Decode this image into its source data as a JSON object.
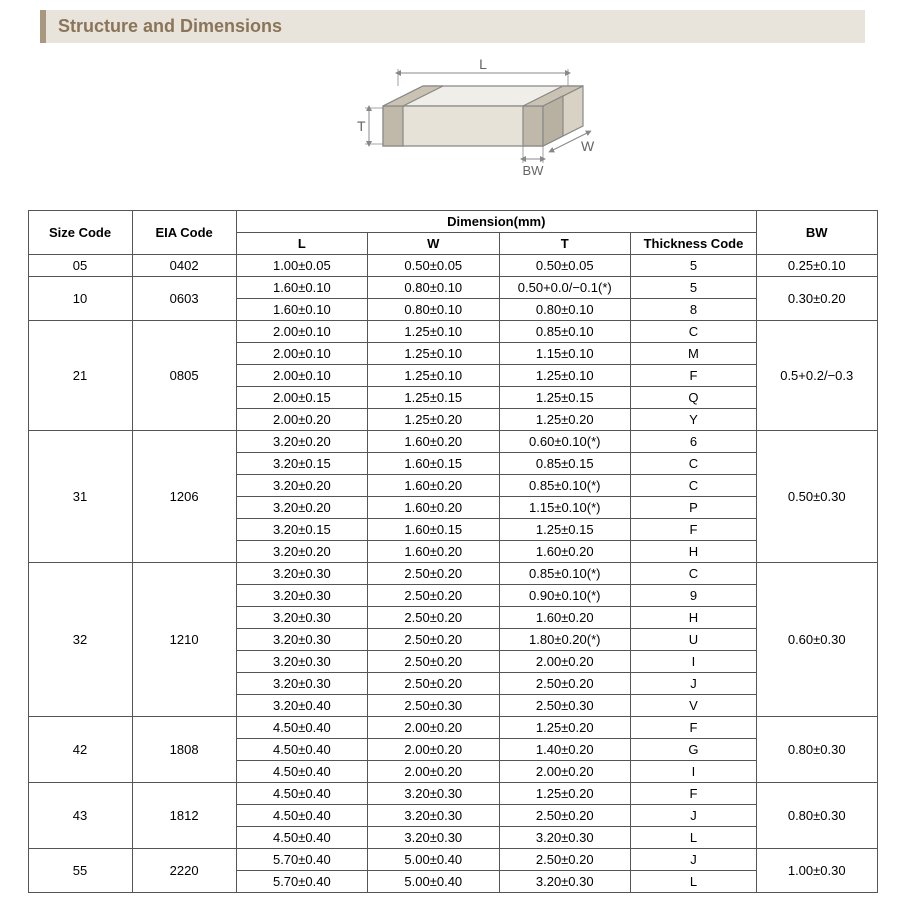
{
  "header": {
    "title": "Structure and Dimensions"
  },
  "diagram": {
    "labels": {
      "L": "L",
      "W": "W",
      "T": "T",
      "BW": "BW"
    },
    "colors": {
      "outline": "#888888",
      "fill_top": "#f0eee8",
      "fill_front": "#e6e2d8",
      "fill_side": "#d8d2c4",
      "bw_fill": "#c0b8a8",
      "arrow": "#888888",
      "text": "#666666"
    },
    "fontsize": 14,
    "stroke_width": 1.2
  },
  "table": {
    "headers": {
      "size": "Size Code",
      "eia": "EIA Code",
      "dim": "Dimension(mm)",
      "L": "L",
      "W": "W",
      "T": "T",
      "thk": "Thickness  Code",
      "BW": "BW"
    },
    "groups": [
      {
        "size": "05",
        "eia": "0402",
        "bw": "0.25±0.10",
        "rows": [
          {
            "L": "1.00±0.05",
            "W": "0.50±0.05",
            "T": "0.50±0.05",
            "thk": "5"
          }
        ]
      },
      {
        "size": "10",
        "eia": "0603",
        "bw": "0.30±0.20",
        "rows": [
          {
            "L": "1.60±0.10",
            "W": "0.80±0.10",
            "T": "0.50+0.0/−0.1(*)",
            "thk": "5"
          },
          {
            "L": "1.60±0.10",
            "W": "0.80±0.10",
            "T": "0.80±0.10",
            "thk": "8"
          }
        ]
      },
      {
        "size": "21",
        "eia": "0805",
        "bw": "0.5+0.2/−0.3",
        "rows": [
          {
            "L": "2.00±0.10",
            "W": "1.25±0.10",
            "T": "0.85±0.10",
            "thk": "C"
          },
          {
            "L": "2.00±0.10",
            "W": "1.25±0.10",
            "T": "1.15±0.10",
            "thk": "M"
          },
          {
            "L": "2.00±0.10",
            "W": "1.25±0.10",
            "T": "1.25±0.10",
            "thk": "F"
          },
          {
            "L": "2.00±0.15",
            "W": "1.25±0.15",
            "T": "1.25±0.15",
            "thk": "Q"
          },
          {
            "L": "2.00±0.20",
            "W": "1.25±0.20",
            "T": "1.25±0.20",
            "thk": "Y"
          }
        ]
      },
      {
        "size": "31",
        "eia": "1206",
        "bw": "0.50±0.30",
        "rows": [
          {
            "L": "3.20±0.20",
            "W": "1.60±0.20",
            "T": "0.60±0.10(*)",
            "thk": "6"
          },
          {
            "L": "3.20±0.15",
            "W": "1.60±0.15",
            "T": "0.85±0.15",
            "thk": "C"
          },
          {
            "L": "3.20±0.20",
            "W": "1.60±0.20",
            "T": "0.85±0.10(*)",
            "thk": "C"
          },
          {
            "L": "3.20±0.20",
            "W": "1.60±0.20",
            "T": "1.15±0.10(*)",
            "thk": "P"
          },
          {
            "L": "3.20±0.15",
            "W": "1.60±0.15",
            "T": "1.25±0.15",
            "thk": "F"
          },
          {
            "L": "3.20±0.20",
            "W": "1.60±0.20",
            "T": "1.60±0.20",
            "thk": "H"
          }
        ]
      },
      {
        "size": "32",
        "eia": "1210",
        "bw": "0.60±0.30",
        "rows": [
          {
            "L": "3.20±0.30",
            "W": "2.50±0.20",
            "T": "0.85±0.10(*)",
            "thk": "C"
          },
          {
            "L": "3.20±0.30",
            "W": "2.50±0.20",
            "T": "0.90±0.10(*)",
            "thk": "9"
          },
          {
            "L": "3.20±0.30",
            "W": "2.50±0.20",
            "T": "1.60±0.20",
            "thk": "H"
          },
          {
            "L": "3.20±0.30",
            "W": "2.50±0.20",
            "T": "1.80±0.20(*)",
            "thk": "U"
          },
          {
            "L": "3.20±0.30",
            "W": "2.50±0.20",
            "T": "2.00±0.20",
            "thk": "I"
          },
          {
            "L": "3.20±0.30",
            "W": "2.50±0.20",
            "T": "2.50±0.20",
            "thk": "J"
          },
          {
            "L": "3.20±0.40",
            "W": "2.50±0.30",
            "T": "2.50±0.30",
            "thk": "V"
          }
        ]
      },
      {
        "size": "42",
        "eia": "1808",
        "bw": "0.80±0.30",
        "rows": [
          {
            "L": "4.50±0.40",
            "W": "2.00±0.20",
            "T": "1.25±0.20",
            "thk": "F"
          },
          {
            "L": "4.50±0.40",
            "W": "2.00±0.20",
            "T": "1.40±0.20",
            "thk": "G"
          },
          {
            "L": "4.50±0.40",
            "W": "2.00±0.20",
            "T": "2.00±0.20",
            "thk": "I"
          }
        ]
      },
      {
        "size": "43",
        "eia": "1812",
        "bw": "0.80±0.30",
        "rows": [
          {
            "L": "4.50±0.40",
            "W": "3.20±0.30",
            "T": "1.25±0.20",
            "thk": "F"
          },
          {
            "L": "4.50±0.40",
            "W": "3.20±0.30",
            "T": "2.50±0.20",
            "thk": "J"
          },
          {
            "L": "4.50±0.40",
            "W": "3.20±0.30",
            "T": "3.20±0.30",
            "thk": "L"
          }
        ]
      },
      {
        "size": "55",
        "eia": "2220",
        "bw": "1.00±0.30",
        "rows": [
          {
            "L": "5.70±0.40",
            "W": "5.00±0.40",
            "T": "2.50±0.20",
            "thk": "J"
          },
          {
            "L": "5.70±0.40",
            "W": "5.00±0.40",
            "T": "3.20±0.30",
            "thk": "L"
          }
        ]
      }
    ]
  }
}
